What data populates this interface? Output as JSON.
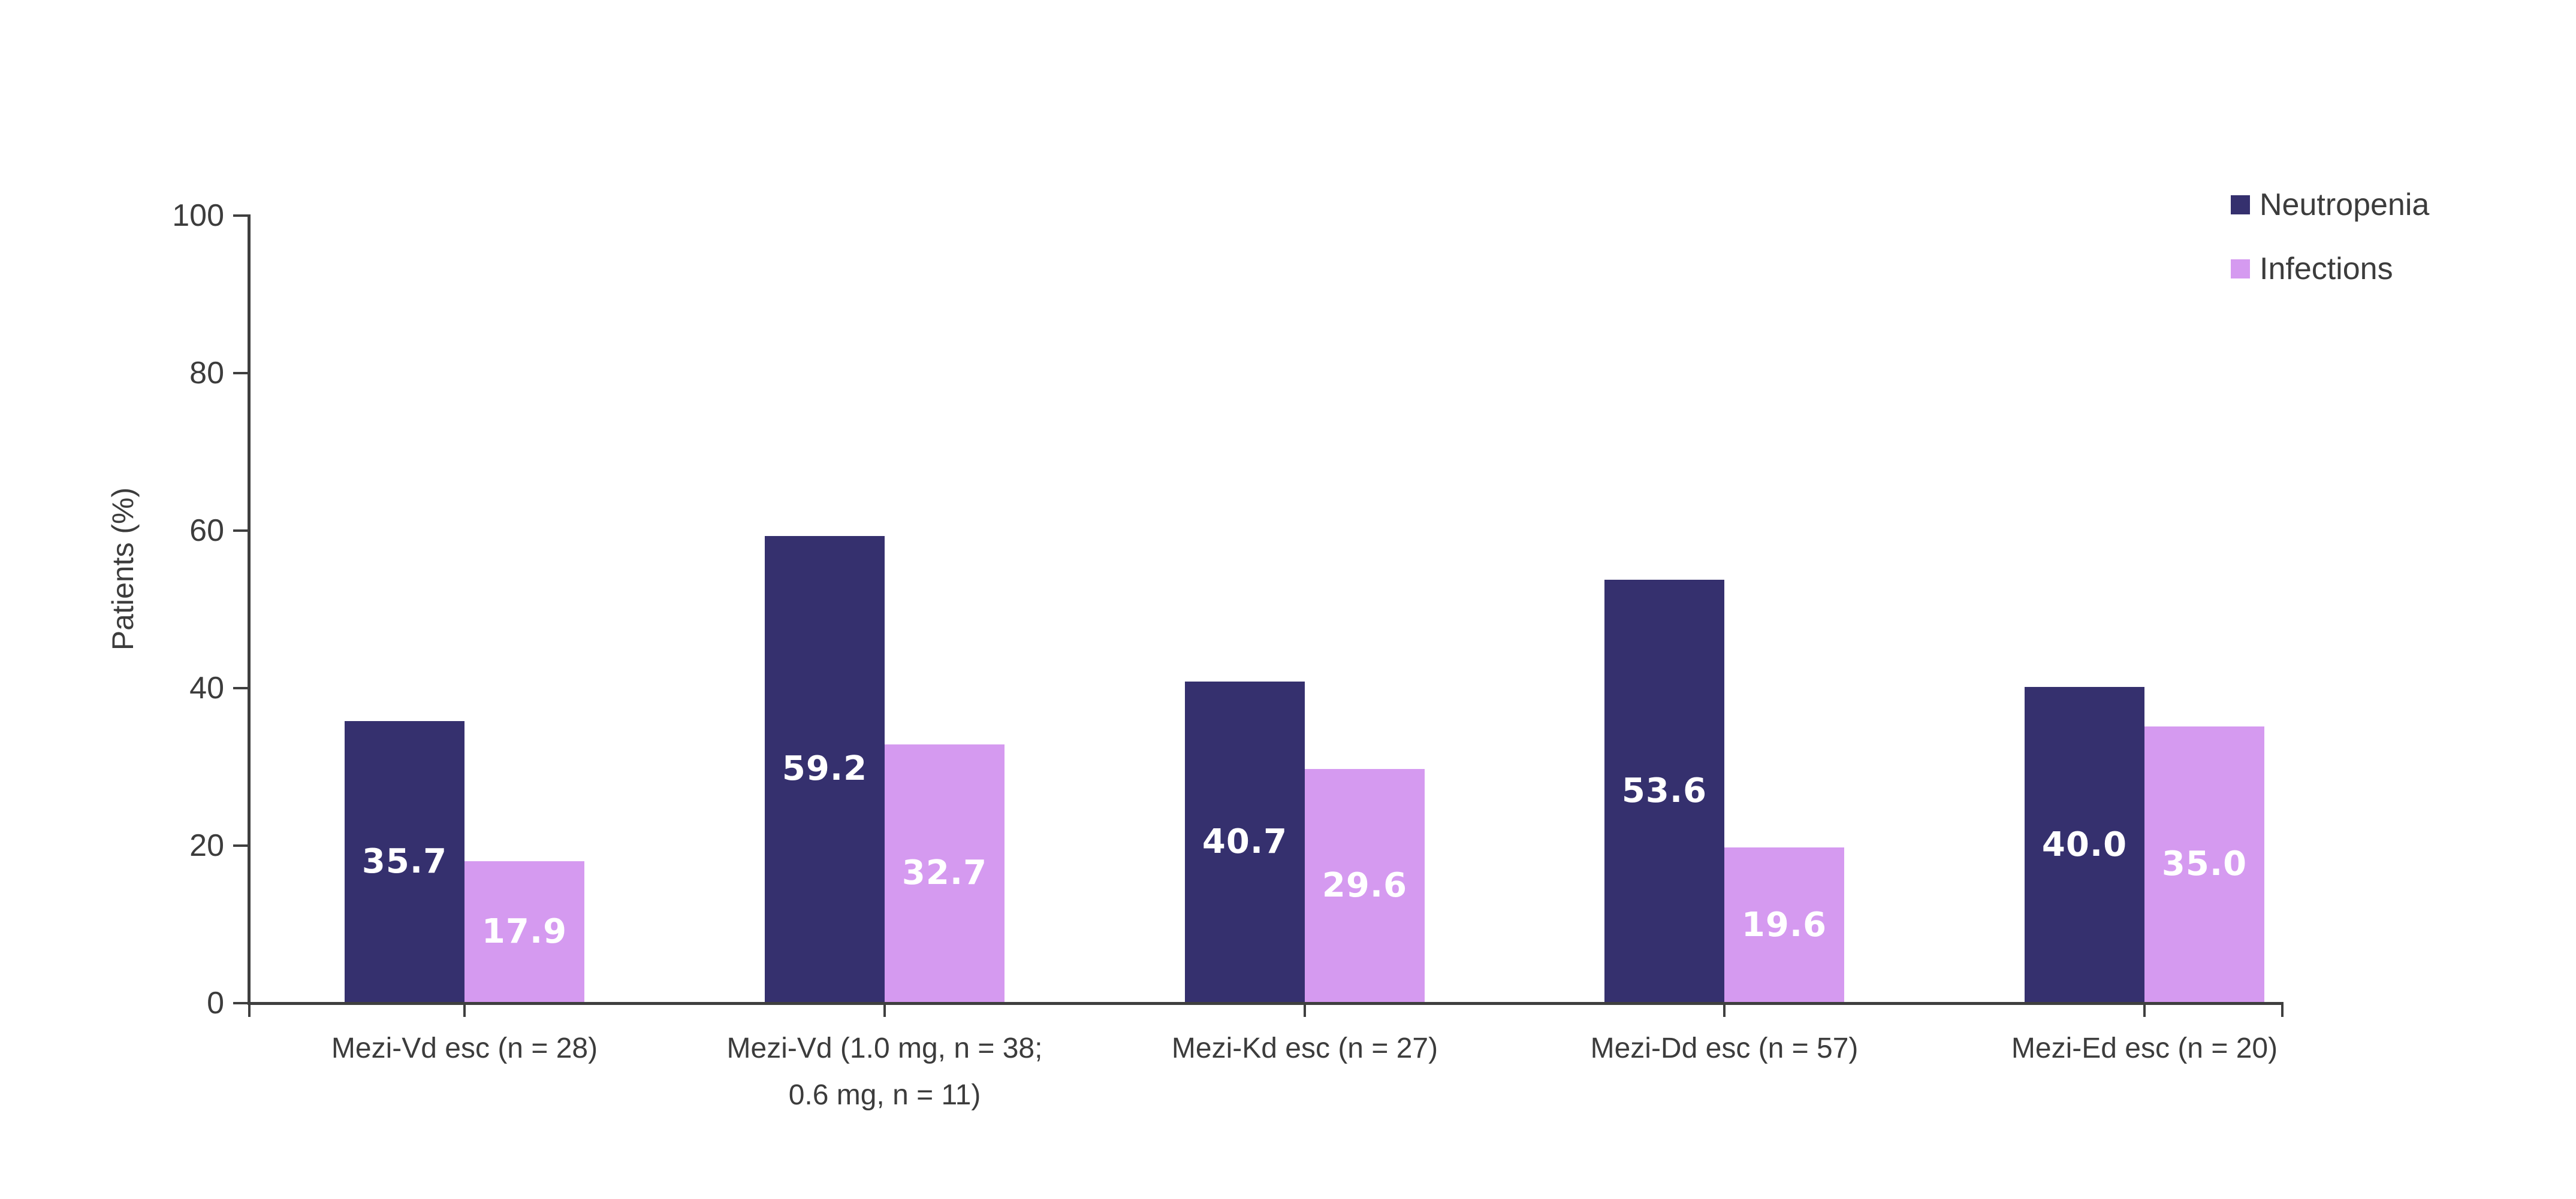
{
  "chart_data": {
    "type": "bar",
    "title": "",
    "ylabel": "Patients (%)",
    "ylim": [
      0,
      100
    ],
    "yticks": [
      0,
      20,
      40,
      60,
      80,
      100
    ],
    "grid": false,
    "legend_position": "top-right",
    "categories": [
      "Mezi-Vd esc (n = 28)",
      "Mezi-Vd (1.0 mg, n = 38;\n0.6 mg, n = 11)",
      "Mezi-Kd esc (n = 27)",
      "Mezi-Dd esc (n = 57)",
      "Mezi-Ed esc (n = 20)"
    ],
    "series": [
      {
        "name": "Neutropenia",
        "color": "#35306E",
        "values": [
          35.7,
          59.2,
          40.7,
          53.6,
          40.0
        ]
      },
      {
        "name": "Infections",
        "color": "#D59AF0",
        "values": [
          17.9,
          32.7,
          29.6,
          19.6,
          35.0
        ]
      }
    ],
    "value_label_color": "#FFFFFF",
    "value_label_decimals": 1
  },
  "colors": {
    "axis": "#3F3F3F",
    "text": "#3C3C3C",
    "background": "#FFFFFF"
  }
}
